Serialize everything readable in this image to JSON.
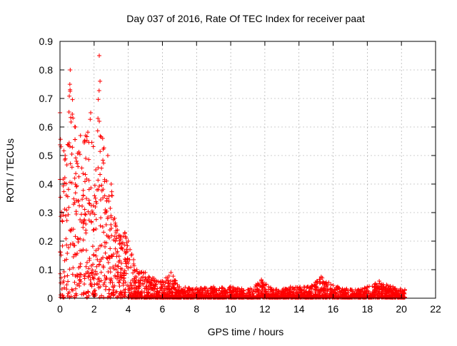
{
  "chart_data": {
    "type": "scatter",
    "title": "Day 037 of 2016, Rate Of TEC Index for receiver paat",
    "xlabel": "GPS time / hours",
    "ylabel": "ROTI / TECUs",
    "xlim": [
      0,
      22
    ],
    "ylim": [
      0,
      0.9
    ],
    "xticks": [
      "0",
      "2",
      "4",
      "6",
      "8",
      "10",
      "12",
      "14",
      "16",
      "18",
      "20",
      "22"
    ],
    "yticks": [
      "0",
      "0.1",
      "0.2",
      "0.3",
      "0.4",
      "0.5",
      "0.6",
      "0.7",
      "0.8",
      "0.9"
    ],
    "grid": true,
    "marker": "+",
    "color": "#ff0000",
    "series": [
      {
        "name": "ROTI",
        "envelope": [
          [
            0.0,
            0.65
          ],
          [
            0.3,
            0.5
          ],
          [
            0.6,
            0.8
          ],
          [
            0.9,
            0.6
          ],
          [
            1.2,
            0.57
          ],
          [
            1.5,
            0.57
          ],
          [
            1.8,
            0.65
          ],
          [
            2.1,
            0.45
          ],
          [
            2.3,
            0.85
          ],
          [
            2.5,
            0.56
          ],
          [
            2.8,
            0.5
          ],
          [
            3.0,
            0.4
          ],
          [
            3.2,
            0.28
          ],
          [
            3.5,
            0.22
          ],
          [
            3.8,
            0.23
          ],
          [
            4.0,
            0.2
          ],
          [
            4.5,
            0.1
          ],
          [
            5.0,
            0.09
          ],
          [
            5.5,
            0.07
          ],
          [
            6.0,
            0.06
          ],
          [
            6.5,
            0.09
          ],
          [
            7.0,
            0.04
          ],
          [
            8.0,
            0.035
          ],
          [
            9.0,
            0.04
          ],
          [
            10.0,
            0.04
          ],
          [
            11.0,
            0.03
          ],
          [
            11.8,
            0.065
          ],
          [
            12.5,
            0.03
          ],
          [
            13.5,
            0.04
          ],
          [
            14.5,
            0.04
          ],
          [
            15.3,
            0.075
          ],
          [
            16.0,
            0.045
          ],
          [
            17.0,
            0.03
          ],
          [
            18.0,
            0.04
          ],
          [
            18.7,
            0.06
          ],
          [
            19.5,
            0.04
          ],
          [
            20.2,
            0.03
          ]
        ]
      }
    ]
  }
}
